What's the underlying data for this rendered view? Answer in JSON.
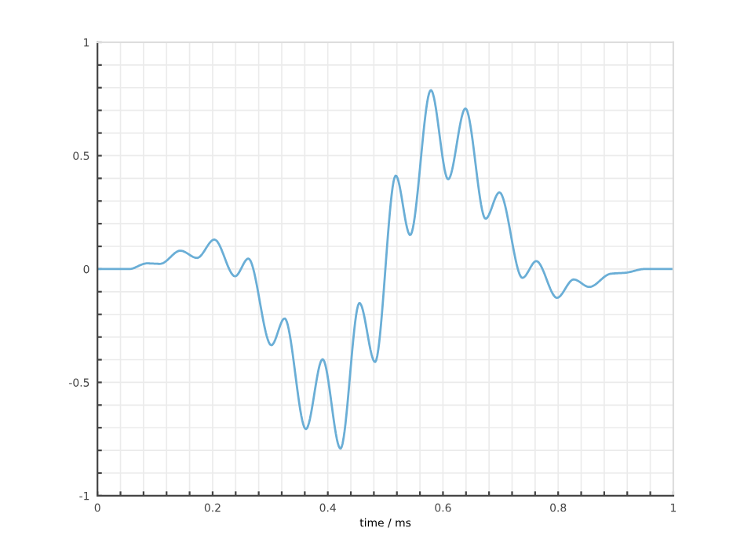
{
  "chart_data": {
    "type": "line",
    "xlabel": "time / ms",
    "x": [
      0,
      0.055,
      0.086,
      0.109,
      0.144,
      0.173,
      0.203,
      0.239,
      0.262,
      0.302,
      0.325,
      0.362,
      0.391,
      0.422,
      0.455,
      0.482,
      0.518,
      0.543,
      0.579,
      0.609,
      0.639,
      0.674,
      0.698,
      0.738,
      0.762,
      0.798,
      0.827,
      0.854,
      0.891,
      0.918,
      0.95,
      1
    ],
    "series": [
      {
        "color": "#6aaed6",
        "values": [
          0,
          0,
          0.025,
          0.023,
          0.081,
          0.049,
          0.13,
          -0.032,
          0.046,
          -0.336,
          -0.218,
          -0.706,
          -0.398,
          -0.792,
          -0.15,
          -0.41,
          0.412,
          0.15,
          0.789,
          0.396,
          0.708,
          0.222,
          0.338,
          -0.039,
          0.035,
          -0.127,
          -0.046,
          -0.079,
          -0.021,
          -0.016,
          0,
          0
        ]
      }
    ],
    "xlim": [
      0,
      1
    ],
    "ylim": [
      -1,
      1
    ],
    "xticks": [
      0,
      {
        "value": 0.04,
        "label": null
      },
      {
        "value": 0.08,
        "label": null
      },
      {
        "value": 0.12,
        "label": null
      },
      {
        "value": 0.16,
        "label": null
      },
      0.2,
      {
        "value": 0.24,
        "label": null
      },
      {
        "value": 0.28,
        "label": null
      },
      {
        "value": 0.32,
        "label": null
      },
      {
        "value": 0.36,
        "label": null
      },
      0.4,
      {
        "value": 0.44,
        "label": null
      },
      {
        "value": 0.48,
        "label": null
      },
      {
        "value": 0.52,
        "label": null
      },
      {
        "value": 0.56,
        "label": null
      },
      0.6,
      {
        "value": 0.64,
        "label": null
      },
      {
        "value": 0.68,
        "label": null
      },
      {
        "value": 0.72,
        "label": null
      },
      {
        "value": 0.76,
        "label": null
      },
      0.8,
      {
        "value": 0.84,
        "label": null
      },
      {
        "value": 0.88,
        "label": null
      },
      {
        "value": 0.92,
        "label": null
      },
      {
        "value": 0.96,
        "label": null
      },
      1
    ],
    "yticks": [
      {
        "value": -1,
        "label": "-1"
      },
      {
        "value": -0.9,
        "label": null
      },
      {
        "value": -0.8,
        "label": null
      },
      {
        "value": -0.7,
        "label": null
      },
      {
        "value": -0.6,
        "label": null
      },
      {
        "value": -0.5,
        "label": "-0.5"
      },
      {
        "value": -0.4,
        "label": null
      },
      {
        "value": -0.3,
        "label": null
      },
      {
        "value": -0.2,
        "label": null
      },
      {
        "value": -0.1,
        "label": null
      },
      0,
      {
        "value": 0.1,
        "label": null
      },
      {
        "value": 0.2,
        "label": null
      },
      {
        "value": 0.3,
        "label": null
      },
      {
        "value": 0.4,
        "label": null
      },
      0.5,
      {
        "value": 0.6,
        "label": null
      },
      {
        "value": 0.7,
        "label": null
      },
      {
        "value": 0.8,
        "label": null
      },
      {
        "value": 0.9,
        "label": null
      },
      1
    ],
    "grid": true,
    "line_style": "solid"
  }
}
